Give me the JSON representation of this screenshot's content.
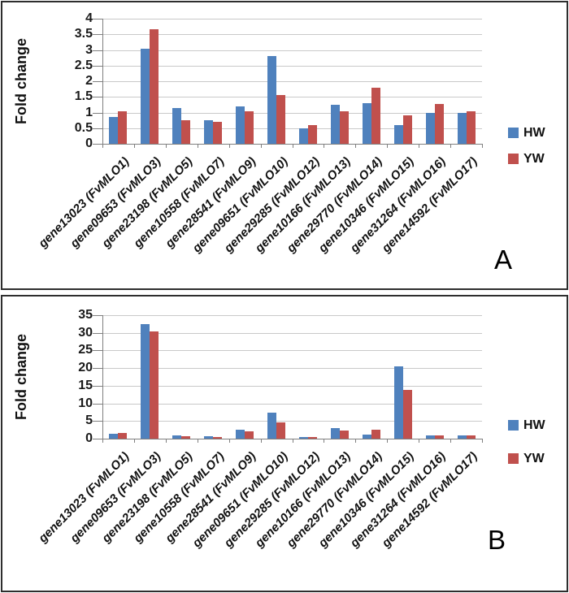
{
  "figure": {
    "panel_labels": [
      "A",
      "B"
    ]
  },
  "chart_data": [
    {
      "type": "bar",
      "panel_label": "A",
      "title": "",
      "xlabel": "",
      "ylabel": "Fold change",
      "ylim": [
        0,
        4
      ],
      "ytick_step": 0.5,
      "grid": true,
      "legend_position": "right",
      "categories": [
        "gene13023 (FvMLO1)",
        "gene09653 (FvMLO3)",
        "gene23198 (FvMLO5)",
        "gene10558 (FvMLO7)",
        "gene28541 (FvMLO9)",
        "gene09651 (FvMLO10)",
        "gene29285 (FvMLO12)",
        "gene10166 (FvMLO13)",
        "gene29770 (FvMLO14)",
        "gene10346 (FvMLO15)",
        "gene31264 (FvMLO16)",
        "gene14592 (FvMLO17)"
      ],
      "series": [
        {
          "name": "HW",
          "color": "#4F81BD",
          "values": [
            0.85,
            3.05,
            1.15,
            0.75,
            1.2,
            2.8,
            0.5,
            1.25,
            1.3,
            0.6,
            1.0,
            1.0
          ]
        },
        {
          "name": "YW",
          "color": "#C0504D",
          "values": [
            1.05,
            3.65,
            0.75,
            0.7,
            1.05,
            1.55,
            0.6,
            1.05,
            1.8,
            0.9,
            1.27,
            1.05
          ]
        }
      ]
    },
    {
      "type": "bar",
      "panel_label": "B",
      "title": "",
      "xlabel": "",
      "ylabel": "Fold change",
      "ylim": [
        0,
        35
      ],
      "ytick_step": 5,
      "grid": true,
      "legend_position": "right",
      "categories": [
        "gene13023 (FvMLO1)",
        "gene09653 (FvMLO3)",
        "gene23198 (FvMLO5)",
        "gene10558 (FvMLO7)",
        "gene28541 (FvMLO9)",
        "gene09651 (FvMLO10)",
        "gene29285 (FvMLO12)",
        "gene10166 (FvMLO13)",
        "gene29770 (FvMLO14)",
        "gene10346 (FvMLO15)",
        "gene31264 (FvMLO16)",
        "gene14592 (FvMLO17)"
      ],
      "series": [
        {
          "name": "HW",
          "color": "#4F81BD",
          "values": [
            1.3,
            32.5,
            1.0,
            0.7,
            2.5,
            7.3,
            0.5,
            3.1,
            1.1,
            20.5,
            0.9,
            0.9
          ]
        },
        {
          "name": "YW",
          "color": "#C0504D",
          "values": [
            1.6,
            30.5,
            0.7,
            0.5,
            2.0,
            4.6,
            0.5,
            2.4,
            2.5,
            13.8,
            0.9,
            0.9
          ]
        }
      ]
    }
  ]
}
